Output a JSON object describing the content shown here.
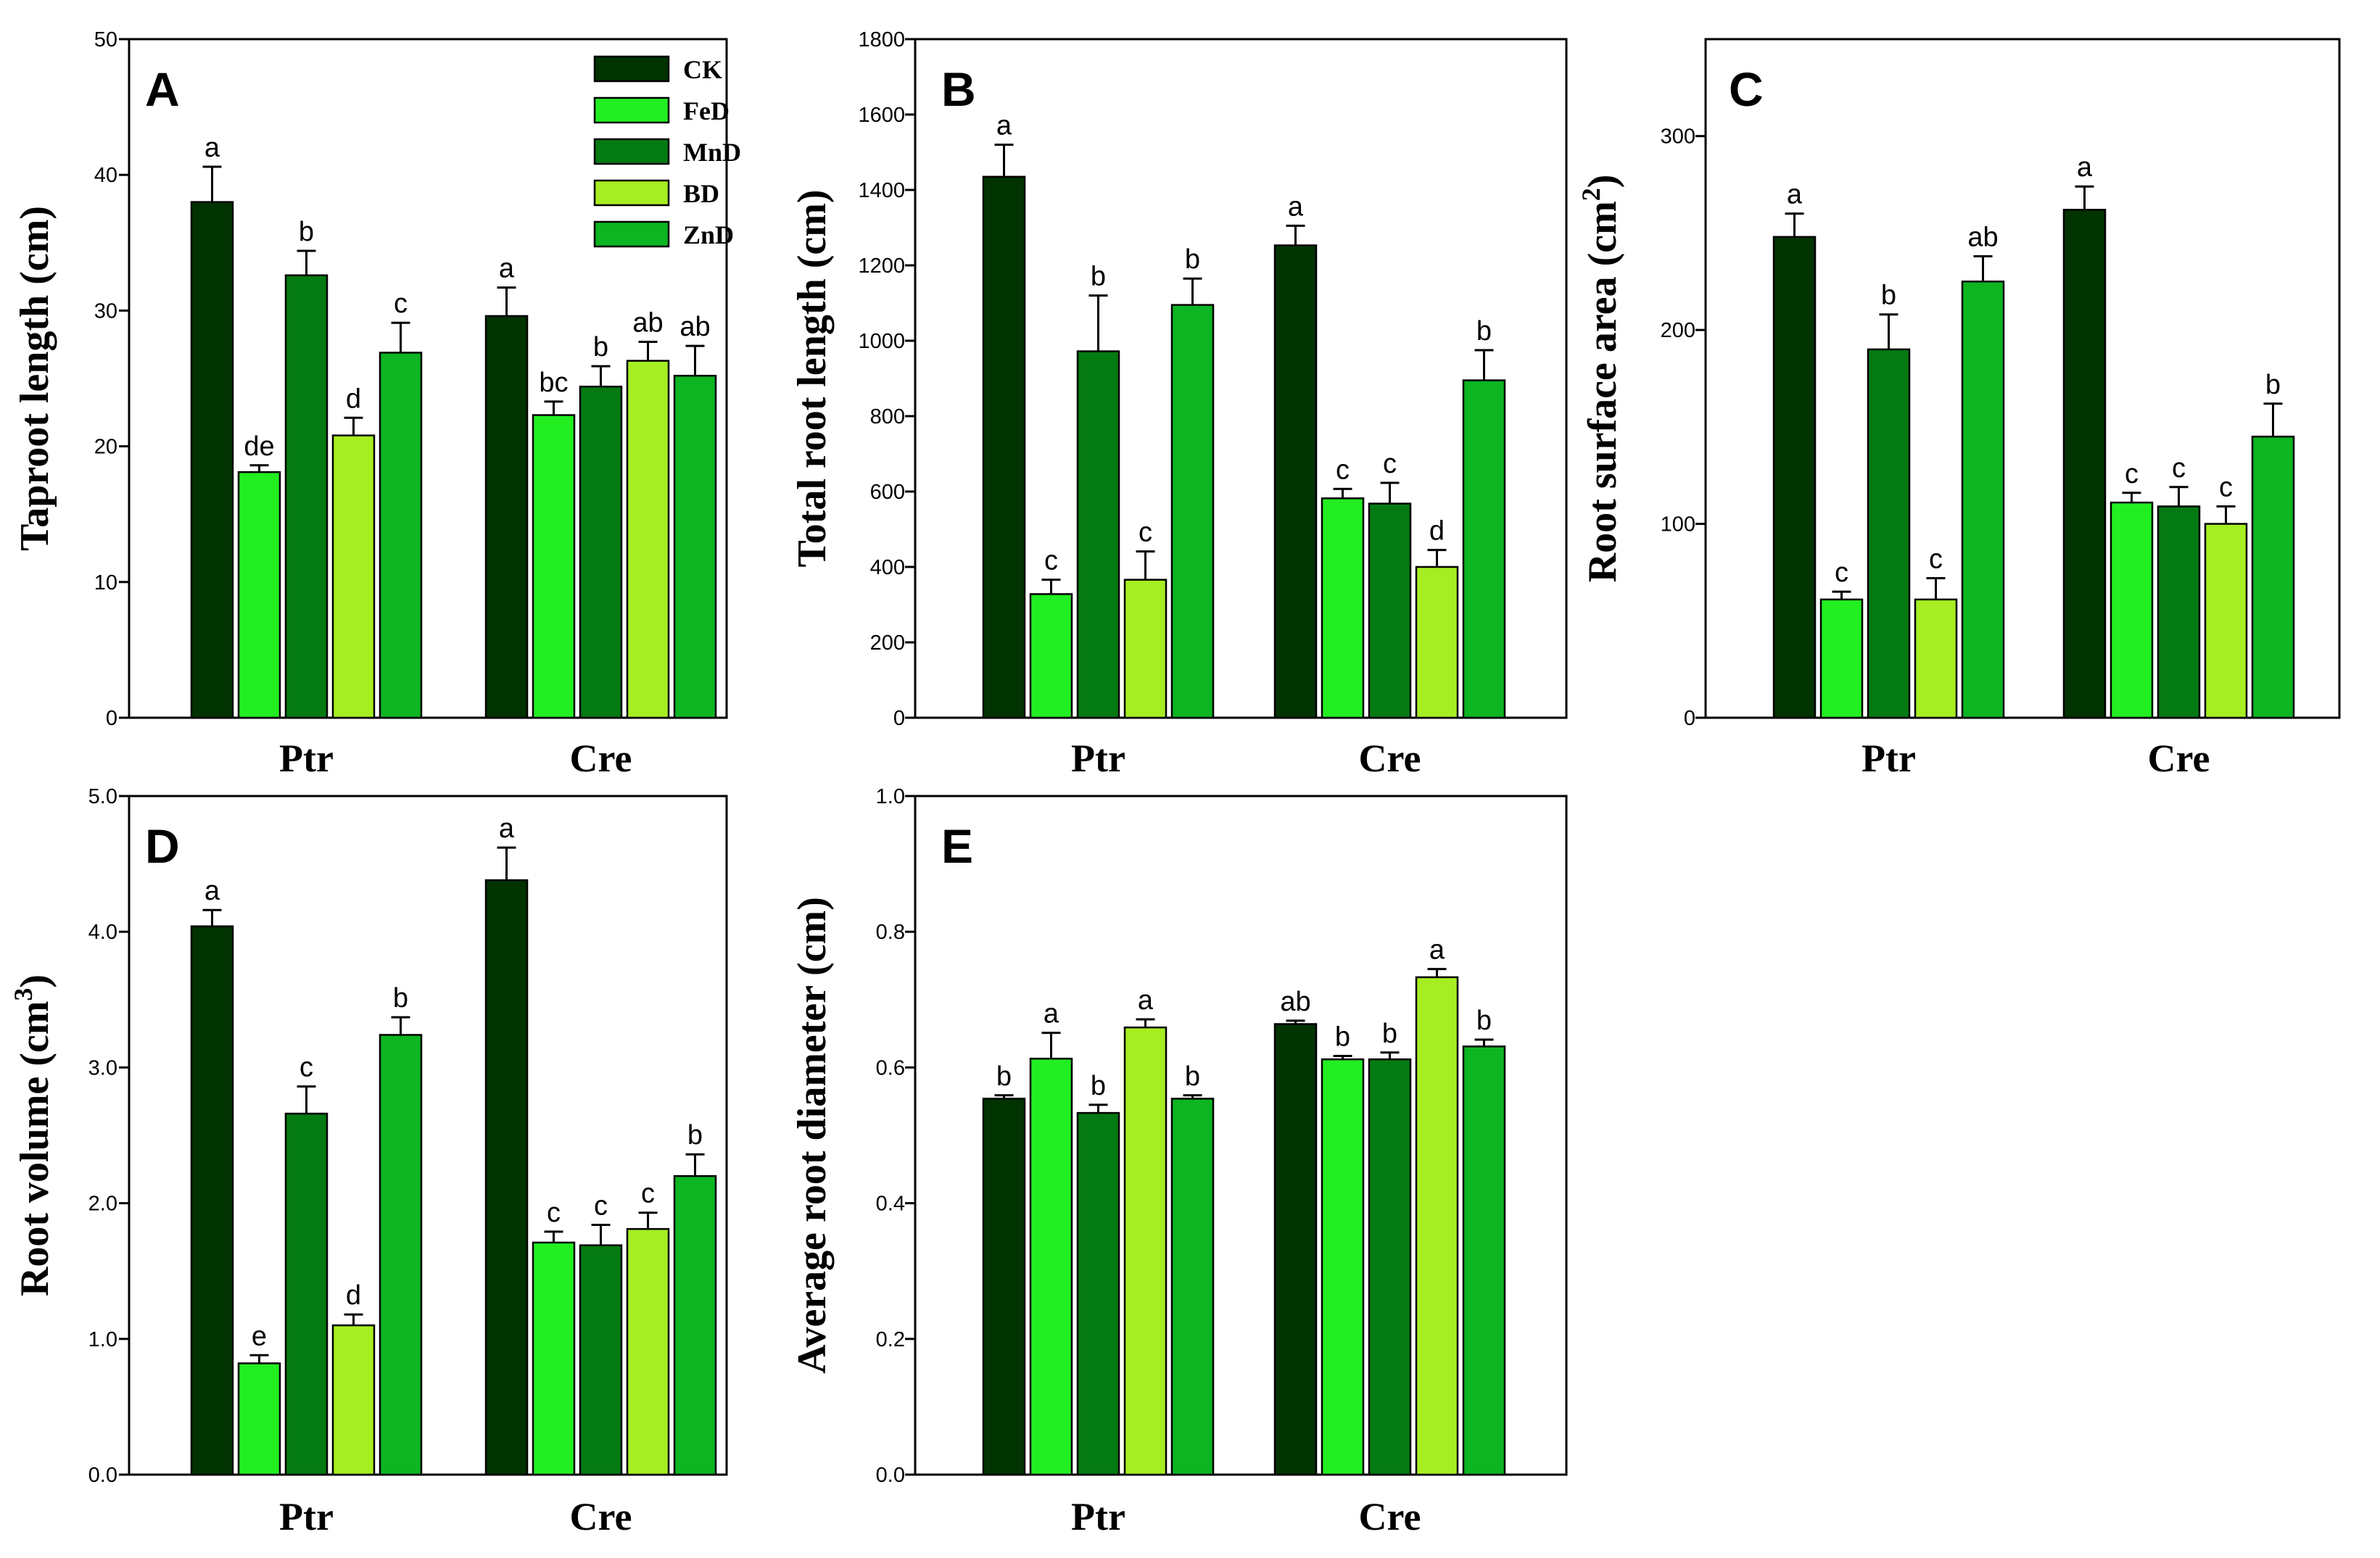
{
  "colors": {
    "CK": "#003300",
    "FeD": "#22ee22",
    "MnD": "#047a12",
    "BD": "#a6ee22",
    "ZnD": "#0cb521"
  },
  "chart_data": [
    {
      "type": "bar",
      "panel": "A",
      "ylabel": "Taproot length (cm)",
      "ylim": [
        0,
        50
      ],
      "yticks": [
        "0",
        "10",
        "20",
        "30",
        "40",
        "50"
      ],
      "categories": [
        "Ptr",
        "Cre"
      ],
      "legend": [
        "CK",
        "FeD",
        "MnD",
        "BD",
        "ZnD"
      ],
      "series": [
        {
          "name": "CK",
          "values": [
            38.0,
            29.6
          ],
          "errors": [
            2.6,
            2.1
          ],
          "labels": [
            "a",
            "a"
          ]
        },
        {
          "name": "FeD",
          "values": [
            18.1,
            22.3
          ],
          "errors": [
            0.5,
            1.0
          ],
          "labels": [
            "de",
            "bc"
          ]
        },
        {
          "name": "MnD",
          "values": [
            32.6,
            24.4
          ],
          "errors": [
            1.8,
            1.5
          ],
          "labels": [
            "b",
            "b"
          ]
        },
        {
          "name": "BD",
          "values": [
            20.8,
            26.3
          ],
          "errors": [
            1.3,
            1.4
          ],
          "labels": [
            "d",
            "ab"
          ]
        },
        {
          "name": "ZnD",
          "values": [
            26.9,
            25.2
          ],
          "errors": [
            2.2,
            2.2
          ],
          "labels": [
            "c",
            "ab"
          ]
        }
      ]
    },
    {
      "type": "bar",
      "panel": "B",
      "ylabel": "Total root length (cm)",
      "ylim": [
        0,
        1800
      ],
      "yticks": [
        "0",
        "200",
        "400",
        "600",
        "800",
        "1000",
        "1200",
        "1400",
        "1600",
        "1800"
      ],
      "categories": [
        "Ptr",
        "Cre"
      ],
      "series": [
        {
          "name": "CK",
          "values": [
            1435,
            1253
          ],
          "errors": [
            85,
            52
          ],
          "labels": [
            "a",
            "a"
          ]
        },
        {
          "name": "FeD",
          "values": [
            328,
            582
          ],
          "errors": [
            38,
            25
          ],
          "labels": [
            "c",
            "c"
          ]
        },
        {
          "name": "MnD",
          "values": [
            972,
            568
          ],
          "errors": [
            148,
            55
          ],
          "labels": [
            "b",
            "c"
          ]
        },
        {
          "name": "BD",
          "values": [
            366,
            400
          ],
          "errors": [
            75,
            45
          ],
          "labels": [
            "c",
            "d"
          ]
        },
        {
          "name": "ZnD",
          "values": [
            1095,
            895
          ],
          "errors": [
            70,
            80
          ],
          "labels": [
            "b",
            "b"
          ]
        }
      ]
    },
    {
      "type": "bar",
      "panel": "C",
      "ylabel": "Root surface area (cm",
      "ylabel_sup": "2",
      "ylabel_end": ")",
      "ylim": [
        0,
        350
      ],
      "yticks": [
        "0",
        "100",
        "200",
        "300"
      ],
      "categories": [
        "Ptr",
        "Cre"
      ],
      "series": [
        {
          "name": "CK",
          "values": [
            248,
            262
          ],
          "errors": [
            12,
            12
          ],
          "labels": [
            "a",
            "a"
          ]
        },
        {
          "name": "FeD",
          "values": [
            61,
            111
          ],
          "errors": [
            4,
            5
          ],
          "labels": [
            "c",
            "c"
          ]
        },
        {
          "name": "MnD",
          "values": [
            190,
            109
          ],
          "errors": [
            18,
            10
          ],
          "labels": [
            "b",
            "c"
          ]
        },
        {
          "name": "BD",
          "values": [
            61,
            100
          ],
          "errors": [
            11,
            9
          ],
          "labels": [
            "c",
            "c"
          ]
        },
        {
          "name": "ZnD",
          "values": [
            225,
            145
          ],
          "errors": [
            13,
            17
          ],
          "labels": [
            "ab",
            "b"
          ]
        }
      ]
    },
    {
      "type": "bar",
      "panel": "D",
      "ylabel": "Root volume (cm",
      "ylabel_sup": "3",
      "ylabel_end": ")",
      "ylim": [
        0,
        5
      ],
      "yticks": [
        "0.0",
        "1.0",
        "2.0",
        "3.0",
        "4.0",
        "5.0"
      ],
      "categories": [
        "Ptr",
        "Cre"
      ],
      "series": [
        {
          "name": "CK",
          "values": [
            4.04,
            4.38
          ],
          "errors": [
            0.12,
            0.24
          ],
          "labels": [
            "a",
            "a"
          ]
        },
        {
          "name": "FeD",
          "values": [
            0.82,
            1.71
          ],
          "errors": [
            0.06,
            0.08
          ],
          "labels": [
            "e",
            "c"
          ]
        },
        {
          "name": "MnD",
          "values": [
            2.66,
            1.69
          ],
          "errors": [
            0.2,
            0.15
          ],
          "labels": [
            "c",
            "c"
          ]
        },
        {
          "name": "BD",
          "values": [
            1.1,
            1.81
          ],
          "errors": [
            0.08,
            0.12
          ],
          "labels": [
            "d",
            "c"
          ]
        },
        {
          "name": "ZnD",
          "values": [
            3.24,
            2.2
          ],
          "errors": [
            0.13,
            0.16
          ],
          "labels": [
            "b",
            "b"
          ]
        }
      ]
    },
    {
      "type": "bar",
      "panel": "E",
      "ylabel": "Average root diameter (cm)",
      "ylim": [
        0,
        1
      ],
      "yticks": [
        "0.0",
        "0.2",
        "0.4",
        "0.6",
        "0.8",
        "1.0"
      ],
      "categories": [
        "Ptr",
        "Cre"
      ],
      "series": [
        {
          "name": "CK",
          "values": [
            0.554,
            0.664
          ],
          "errors": [
            0.005,
            0.005
          ],
          "labels": [
            "b",
            "ab"
          ]
        },
        {
          "name": "FeD",
          "values": [
            0.613,
            0.612
          ],
          "errors": [
            0.038,
            0.005
          ],
          "labels": [
            "a",
            "b"
          ]
        },
        {
          "name": "MnD",
          "values": [
            0.533,
            0.612
          ],
          "errors": [
            0.012,
            0.01
          ],
          "labels": [
            "b",
            "b"
          ]
        },
        {
          "name": "BD",
          "values": [
            0.659,
            0.733
          ],
          "errors": [
            0.012,
            0.012
          ],
          "labels": [
            "a",
            "a"
          ]
        },
        {
          "name": "ZnD",
          "values": [
            0.554,
            0.631
          ],
          "errors": [
            0.005,
            0.01
          ],
          "labels": [
            "b",
            "b"
          ]
        }
      ]
    }
  ]
}
